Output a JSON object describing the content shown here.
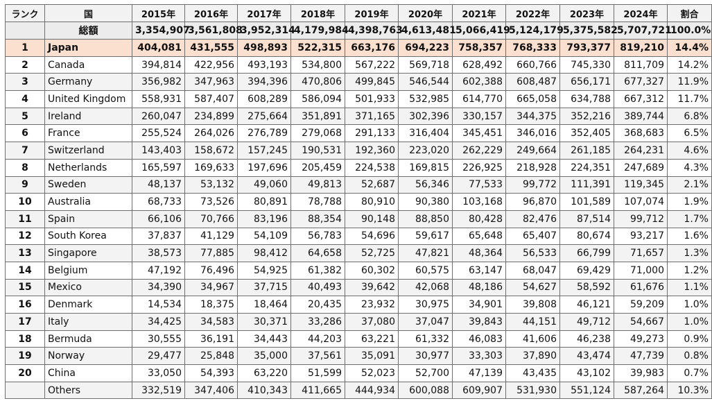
{
  "header": {
    "rank": "ランク",
    "country": "国",
    "years": [
      "2015年",
      "2016年",
      "2017年",
      "2018年",
      "2019年",
      "2020年",
      "2021年",
      "2022年",
      "2023年",
      "2024年"
    ],
    "share": "割合"
  },
  "total": {
    "label": "総額",
    "values": [
      "3,354,907",
      "3,561,808",
      "3,952,314",
      "4,179,984",
      "4,398,763",
      "4,613,481",
      "5,066,419",
      "5,124,179",
      "5,375,582",
      "5,707,721"
    ],
    "share": "100.0%"
  },
  "rows": [
    {
      "rank": "1",
      "country": "Japan",
      "values": [
        "404,081",
        "431,555",
        "498,893",
        "522,315",
        "663,176",
        "694,223",
        "758,357",
        "768,333",
        "793,377",
        "819,210"
      ],
      "share": "14.4%"
    },
    {
      "rank": "2",
      "country": "Canada",
      "values": [
        "394,814",
        "422,956",
        "493,193",
        "534,800",
        "567,222",
        "569,718",
        "628,492",
        "660,766",
        "745,330",
        "811,709"
      ],
      "share": "14.2%"
    },
    {
      "rank": "3",
      "country": "Germany",
      "values": [
        "356,982",
        "347,963",
        "394,396",
        "470,806",
        "499,845",
        "546,544",
        "602,388",
        "608,487",
        "656,171",
        "677,327"
      ],
      "share": "11.9%"
    },
    {
      "rank": "4",
      "country": "United Kingdom",
      "values": [
        "558,931",
        "587,407",
        "608,289",
        "586,094",
        "501,933",
        "532,985",
        "614,770",
        "665,058",
        "634,788",
        "667,312"
      ],
      "share": "11.7%"
    },
    {
      "rank": "5",
      "country": "Ireland",
      "values": [
        "260,047",
        "234,899",
        "275,664",
        "351,891",
        "371,165",
        "302,396",
        "330,157",
        "344,375",
        "352,216",
        "389,744"
      ],
      "share": "6.8%"
    },
    {
      "rank": "6",
      "country": "France",
      "values": [
        "255,524",
        "264,026",
        "276,789",
        "279,068",
        "291,133",
        "316,404",
        "345,451",
        "346,016",
        "352,405",
        "368,683"
      ],
      "share": "6.5%"
    },
    {
      "rank": "7",
      "country": "Switzerland",
      "values": [
        "143,403",
        "158,672",
        "157,245",
        "190,531",
        "192,360",
        "223,020",
        "262,229",
        "249,664",
        "261,185",
        "264,231"
      ],
      "share": "4.6%"
    },
    {
      "rank": "8",
      "country": "Netherlands",
      "values": [
        "165,597",
        "169,633",
        "197,696",
        "205,459",
        "224,538",
        "169,815",
        "226,925",
        "218,928",
        "224,351",
        "247,689"
      ],
      "share": "4.3%"
    },
    {
      "rank": "9",
      "country": "Sweden",
      "values": [
        "48,137",
        "53,132",
        "49,060",
        "49,813",
        "52,687",
        "56,346",
        "77,533",
        "99,772",
        "111,391",
        "119,345"
      ],
      "share": "2.1%"
    },
    {
      "rank": "10",
      "country": "Australia",
      "values": [
        "68,733",
        "73,526",
        "80,891",
        "78,788",
        "80,910",
        "90,380",
        "103,168",
        "96,870",
        "101,589",
        "107,074"
      ],
      "share": "1.9%"
    },
    {
      "rank": "11",
      "country": "Spain",
      "values": [
        "66,106",
        "70,766",
        "83,196",
        "88,354",
        "90,148",
        "88,850",
        "80,428",
        "82,476",
        "87,514",
        "99,712"
      ],
      "share": "1.7%"
    },
    {
      "rank": "12",
      "country": "South Korea",
      "values": [
        "37,837",
        "41,129",
        "54,109",
        "56,783",
        "54,696",
        "59,617",
        "65,648",
        "65,407",
        "80,674",
        "93,217"
      ],
      "share": "1.6%"
    },
    {
      "rank": "13",
      "country": "Singapore",
      "values": [
        "38,573",
        "77,885",
        "98,412",
        "64,658",
        "52,725",
        "47,821",
        "48,364",
        "56,533",
        "66,799",
        "71,657"
      ],
      "share": "1.3%"
    },
    {
      "rank": "14",
      "country": "Belgium",
      "values": [
        "47,192",
        "76,496",
        "54,925",
        "61,382",
        "60,302",
        "60,575",
        "63,147",
        "68,047",
        "69,429",
        "71,000"
      ],
      "share": "1.2%"
    },
    {
      "rank": "15",
      "country": "Mexico",
      "values": [
        "34,390",
        "34,967",
        "37,715",
        "40,493",
        "39,642",
        "42,068",
        "48,186",
        "54,627",
        "58,592",
        "61,676"
      ],
      "share": "1.1%"
    },
    {
      "rank": "16",
      "country": "Denmark",
      "values": [
        "14,534",
        "18,375",
        "18,464",
        "20,435",
        "23,932",
        "30,975",
        "34,901",
        "39,808",
        "46,121",
        "59,209"
      ],
      "share": "1.0%"
    },
    {
      "rank": "17",
      "country": "Italy",
      "values": [
        "34,425",
        "34,583",
        "30,371",
        "33,286",
        "37,080",
        "37,047",
        "39,843",
        "44,151",
        "49,712",
        "54,667"
      ],
      "share": "1.0%"
    },
    {
      "rank": "18",
      "country": "Bermuda",
      "values": [
        "30,555",
        "36,191",
        "34,443",
        "44,203",
        "63,221",
        "61,332",
        "46,083",
        "41,606",
        "46,238",
        "49,273"
      ],
      "share": "0.9%"
    },
    {
      "rank": "19",
      "country": "Norway",
      "values": [
        "29,477",
        "25,848",
        "35,000",
        "37,561",
        "35,091",
        "30,977",
        "33,303",
        "37,890",
        "43,474",
        "47,739"
      ],
      "share": "0.8%"
    },
    {
      "rank": "20",
      "country": "China",
      "values": [
        "33,050",
        "54,393",
        "63,220",
        "51,599",
        "52,023",
        "52,700",
        "47,139",
        "43,435",
        "43,102",
        "39,983"
      ],
      "share": "0.7%"
    },
    {
      "rank": "",
      "country": "Others",
      "values": [
        "332,519",
        "347,406",
        "410,343",
        "411,665",
        "444,934",
        "600,088",
        "609,907",
        "531,930",
        "551,124",
        "587,264"
      ],
      "share": "10.3%"
    }
  ]
}
